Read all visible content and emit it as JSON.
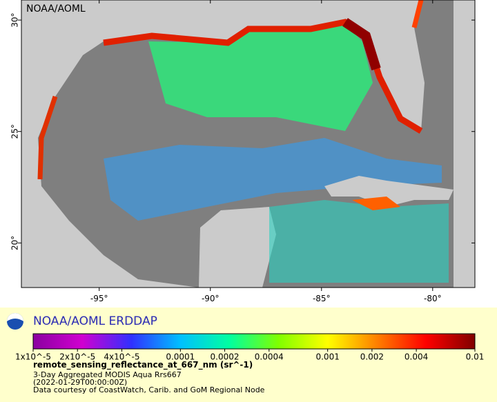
{
  "map": {
    "watermark": "NOAA/AOML",
    "lonlim": [
      -98.5,
      -78.1
    ],
    "latlim": [
      18.0,
      30.9
    ],
    "lonticks": [
      {
        "value": -95,
        "label": "-95°"
      },
      {
        "value": -90,
        "label": "-90°"
      },
      {
        "value": -85,
        "label": "-85°"
      },
      {
        "value": -80,
        "label": "-80°"
      }
    ],
    "latticks": [
      {
        "value": 30,
        "label": "30°"
      },
      {
        "value": 25,
        "label": "25°"
      },
      {
        "value": 20,
        "label": "20°"
      }
    ]
  },
  "legend": {
    "title": "NOAA/AOML ERDDAP",
    "colorbar": {
      "scale": "log",
      "lim": [
        1e-05,
        0.01
      ],
      "colors": [
        "#8a00a0",
        "#d000d0",
        "#3030ff",
        "#00c0ff",
        "#00ffa0",
        "#80ff00",
        "#ffff00",
        "#ff8000",
        "#ff0000",
        "#800000"
      ],
      "ticks": [
        {
          "value": 1e-05,
          "label": "1x10^-5"
        },
        {
          "value": 2e-05,
          "label": "2x10^-5"
        },
        {
          "value": 4e-05,
          "label": "4x10^-5"
        },
        {
          "value": 0.0001,
          "label": "0.0001"
        },
        {
          "value": 0.0002,
          "label": "0.0002"
        },
        {
          "value": 0.0004,
          "label": "0.0004"
        },
        {
          "value": 0.001,
          "label": "0.001"
        },
        {
          "value": 0.002,
          "label": "0.002"
        },
        {
          "value": 0.004,
          "label": "0.004"
        },
        {
          "value": 0.01,
          "label": "0.01"
        }
      ]
    },
    "variable": "remote_sensing_reflectance_at_667_nm (sr^-1)",
    "lines": [
      "3-Day Aggregated MODIS Aqua Rrs667",
      "(2022-01-29T00:00:00Z)",
      "Data courtesy of CoastWatch, Carib. and GoM Regional Node"
    ]
  }
}
